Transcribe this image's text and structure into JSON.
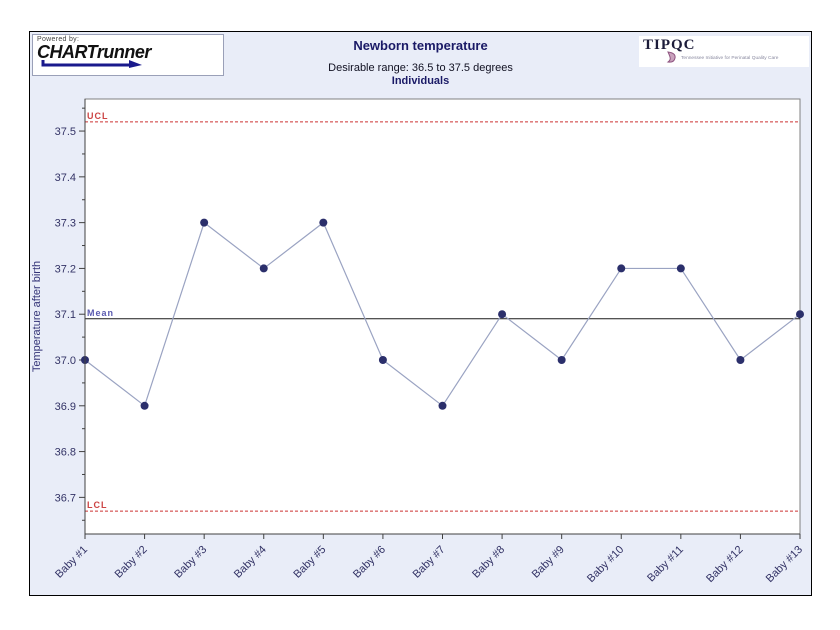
{
  "branding": {
    "powered_by": "Powered by:",
    "brand": "CHARTrunner"
  },
  "partner_logo": {
    "name": "TIPQC",
    "caption": "Tennessee Initiative for Perinatal Quality Care"
  },
  "chart_data": {
    "type": "line",
    "title": "Newborn temperature",
    "subtitle": "Desirable range: 36.5 to 37.5 degrees",
    "chart_label": "Individuals",
    "ylabel": "Temperature after birth",
    "xlabel": "",
    "categories": [
      "Baby #1",
      "Baby #2",
      "Baby #3",
      "Baby #4",
      "Baby #5",
      "Baby #6",
      "Baby #7",
      "Baby #8",
      "Baby #9",
      "Baby #10",
      "Baby #11",
      "Baby #12",
      "Baby #13"
    ],
    "values": [
      37.0,
      36.9,
      37.3,
      37.2,
      37.3,
      37.0,
      36.9,
      37.1,
      37.0,
      37.2,
      37.2,
      37.0,
      37.1
    ],
    "ylim": [
      36.62,
      37.57
    ],
    "ytick_range": [
      36.7,
      37.5
    ],
    "ytick_step": 0.1,
    "ytick_minor_step": 0.05,
    "grid": false,
    "legend": "none",
    "control_lines": [
      {
        "id": "ucl",
        "label": "UCL",
        "value": 37.52,
        "style": "dashed",
        "color": "#cc3333",
        "label_color": "#cc4444"
      },
      {
        "id": "mean",
        "label": "Mean",
        "value": 37.09,
        "style": "solid",
        "color": "#1a1a1a",
        "label_color": "#5b5bb0"
      },
      {
        "id": "lcl",
        "label": "LCL",
        "value": 36.67,
        "style": "dashed",
        "color": "#cc3333",
        "label_color": "#cc4444"
      }
    ],
    "series_color": "#9aa3c2",
    "marker_color": "#2b2f6b"
  },
  "colors": {
    "chart_background": "#e9edf8",
    "plot_background": "#ffffff",
    "title_text": "#1a1a66",
    "tick_label": "#333366",
    "axis": "#404040",
    "plot_border": "#808080"
  }
}
